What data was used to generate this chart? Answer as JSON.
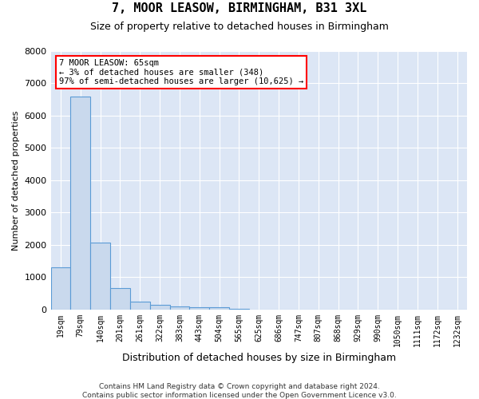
{
  "title1": "7, MOOR LEASOW, BIRMINGHAM, B31 3XL",
  "title2": "Size of property relative to detached houses in Birmingham",
  "xlabel": "Distribution of detached houses by size in Birmingham",
  "ylabel": "Number of detached properties",
  "categories": [
    "19sqm",
    "79sqm",
    "140sqm",
    "201sqm",
    "261sqm",
    "322sqm",
    "383sqm",
    "443sqm",
    "504sqm",
    "565sqm",
    "625sqm",
    "686sqm",
    "747sqm",
    "807sqm",
    "868sqm",
    "929sqm",
    "990sqm",
    "1050sqm",
    "1111sqm",
    "1172sqm",
    "1232sqm"
  ],
  "values": [
    1300,
    6600,
    2075,
    650,
    250,
    130,
    100,
    60,
    60,
    5,
    2,
    0,
    0,
    0,
    0,
    0,
    0,
    0,
    0,
    0,
    0
  ],
  "bar_color": "#c9d9ed",
  "bar_edge_color": "#5b9bd5",
  "ylim_max": 8000,
  "yticks": [
    0,
    1000,
    2000,
    3000,
    4000,
    5000,
    6000,
    7000,
    8000
  ],
  "bg_color": "#dce6f5",
  "grid_color": "#ffffff",
  "annotation_line1": "7 MOOR LEASOW: 65sqm",
  "annotation_line2": "← 3% of detached houses are smaller (348)",
  "annotation_line3": "97% of semi-detached houses are larger (10,625) →",
  "footer1": "Contains HM Land Registry data © Crown copyright and database right 2024.",
  "footer2": "Contains public sector information licensed under the Open Government Licence v3.0."
}
